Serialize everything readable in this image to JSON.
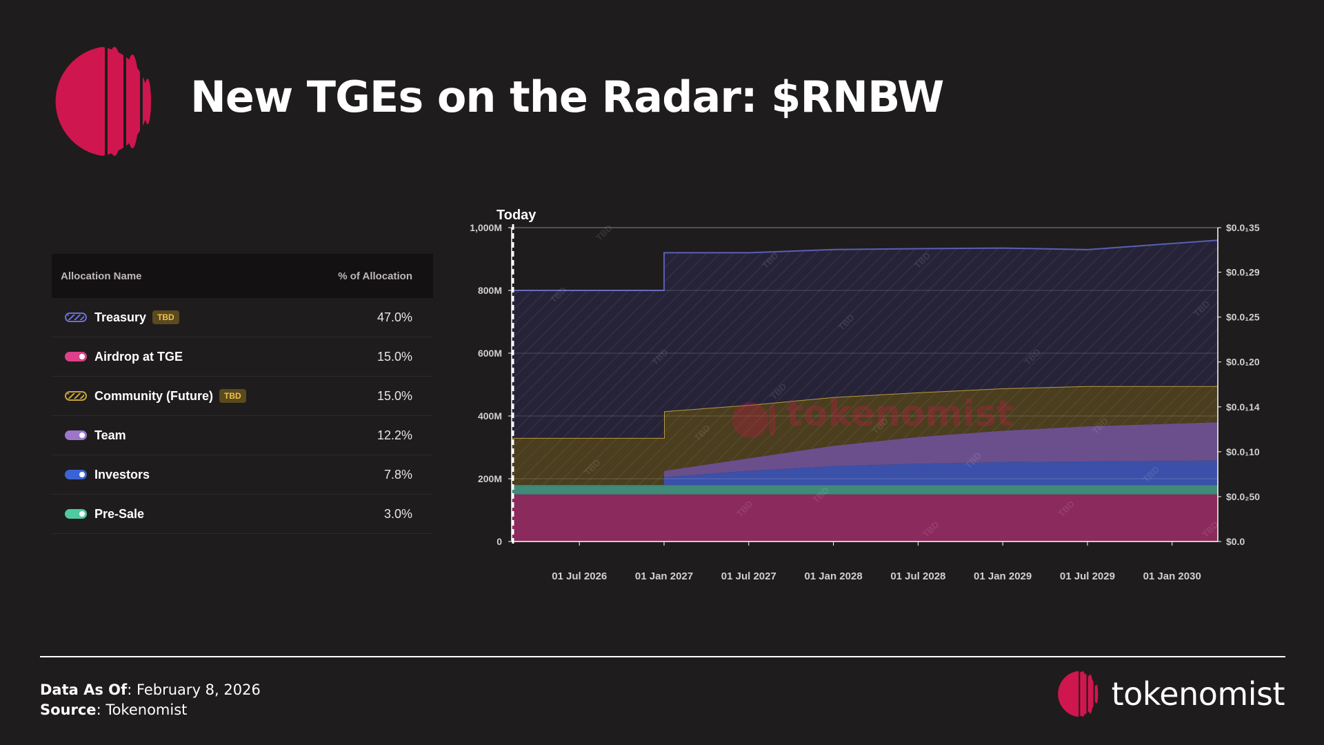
{
  "header": {
    "title": "New TGEs on the Radar: $RNBW"
  },
  "allocation_table": {
    "header_name": "Allocation Name",
    "header_pct": "% of Allocation",
    "rows": [
      {
        "name": "Treasury",
        "tbd": true,
        "tbd_label": "TBD",
        "pct": "47.0%",
        "color": "#6b6fd6"
      },
      {
        "name": "Airdrop at TGE",
        "tbd": false,
        "pct": "15.0%",
        "color": "#e0408a"
      },
      {
        "name": "Community (Future)",
        "tbd": true,
        "tbd_label": "TBD",
        "pct": "15.0%",
        "color": "#c9a43a"
      },
      {
        "name": "Team",
        "tbd": false,
        "pct": "12.2%",
        "color": "#9b76c9"
      },
      {
        "name": "Investors",
        "tbd": false,
        "pct": "7.8%",
        "color": "#3a63d6"
      },
      {
        "name": "Pre-Sale",
        "tbd": false,
        "pct": "3.0%",
        "color": "#4fc9a0"
      }
    ]
  },
  "chart_data": {
    "type": "area",
    "stacked": true,
    "today_label": "Today",
    "x_start": 2026.1,
    "x_end": 2030.27,
    "x_ticks": [
      {
        "label": "01 Jul 2026",
        "x": 2026.5
      },
      {
        "label": "01 Jan 2027",
        "x": 2027.0
      },
      {
        "label": "01 Jul 2027",
        "x": 2027.5
      },
      {
        "label": "01 Jan 2028",
        "x": 2028.0
      },
      {
        "label": "01 Jul 2028",
        "x": 2028.5
      },
      {
        "label": "01 Jan 2029",
        "x": 2029.0
      },
      {
        "label": "01 Jul 2029",
        "x": 2029.5
      },
      {
        "label": "01 Jan 2030",
        "x": 2030.0
      }
    ],
    "y_left": {
      "min": 0,
      "max": 1000,
      "unit": "M",
      "ticks": [
        {
          "v": 0,
          "label": "0"
        },
        {
          "v": 200,
          "label": "200M"
        },
        {
          "v": 400,
          "label": "400M"
        },
        {
          "v": 600,
          "label": "600M"
        },
        {
          "v": 800,
          "label": "800M"
        },
        {
          "v": 1000,
          "label": "1,000M"
        }
      ]
    },
    "y_right_ticks": [
      {
        "v": 0,
        "label": "$0.0"
      },
      {
        "v": 143,
        "label": "$0.0₂50"
      },
      {
        "v": 286,
        "label": "$0.0₁10"
      },
      {
        "v": 429,
        "label": "$0.0₁14"
      },
      {
        "v": 572,
        "label": "$0.0₁20"
      },
      {
        "v": 715,
        "label": "$0.0₁25"
      },
      {
        "v": 858,
        "label": "$0.0₁29"
      },
      {
        "v": 1000,
        "label": "$0.0₁35"
      }
    ],
    "watermark_text": "tokenomist",
    "tbd_marker": "TBD",
    "series": [
      {
        "name": "Airdrop at TGE",
        "color": "#8b2a5c",
        "hatched": false,
        "points": [
          [
            2026.1,
            150
          ],
          [
            2030.27,
            150
          ]
        ]
      },
      {
        "name": "Pre-Sale",
        "color": "#3f8a78",
        "hatched": false,
        "points": [
          [
            2026.1,
            30
          ],
          [
            2030.27,
            30
          ]
        ]
      },
      {
        "name": "Investors",
        "color": "#3b50a8",
        "hatched": false,
        "points": [
          [
            2026.1,
            0
          ],
          [
            2027.0,
            0
          ],
          [
            2027.0,
            25
          ],
          [
            2027.5,
            45
          ],
          [
            2028.0,
            60
          ],
          [
            2028.5,
            68
          ],
          [
            2029.0,
            73
          ],
          [
            2030.27,
            78
          ]
        ]
      },
      {
        "name": "Team",
        "color": "#6a4f8c",
        "hatched": false,
        "points": [
          [
            2026.1,
            0
          ],
          [
            2027.0,
            0
          ],
          [
            2027.0,
            20
          ],
          [
            2027.5,
            40
          ],
          [
            2028.0,
            65
          ],
          [
            2028.5,
            85
          ],
          [
            2029.0,
            100
          ],
          [
            2029.5,
            112
          ],
          [
            2030.27,
            122
          ]
        ]
      },
      {
        "name": "Community (Future)",
        "color": "#4a3e1e",
        "hatched": true,
        "points": [
          [
            2026.1,
            150
          ],
          [
            2027.0,
            150
          ],
          [
            2027.0,
            190
          ],
          [
            2027.5,
            170
          ],
          [
            2028.0,
            155
          ],
          [
            2028.5,
            142
          ],
          [
            2029.0,
            135
          ],
          [
            2029.5,
            128
          ],
          [
            2030.27,
            115
          ]
        ]
      },
      {
        "name": "Treasury",
        "color": "#262338",
        "hatched": true,
        "points": [
          [
            2026.1,
            470
          ],
          [
            2027.0,
            470
          ],
          [
            2027.0,
            505
          ],
          [
            2027.5,
            485
          ],
          [
            2028.0,
            470
          ],
          [
            2028.5,
            458
          ],
          [
            2029.0,
            447
          ],
          [
            2029.5,
            435
          ],
          [
            2030.27,
            465
          ]
        ]
      }
    ]
  },
  "footer": {
    "data_as_of_label": "Data As Of",
    "data_as_of_value": ": February 8, 2026",
    "source_label": "Source",
    "source_value": ": Tokenomist",
    "brand_name": "tokenomist",
    "brand_color": "#d0164f"
  }
}
